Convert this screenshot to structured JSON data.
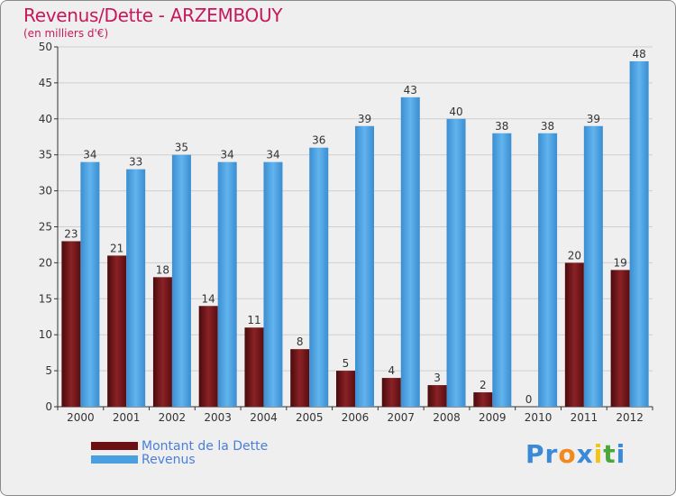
{
  "title": "Revenus/Dette - ARZEMBOUY",
  "subtitle": "(en milliers d'€)",
  "colors": {
    "title": "#c8185a",
    "dette": "#6b0f12",
    "revenus": "#4a9fe0",
    "legend_text": "#4a7fd8"
  },
  "chart_data": {
    "type": "bar",
    "categories": [
      "2000",
      "2001",
      "2002",
      "2003",
      "2004",
      "2005",
      "2006",
      "2007",
      "2008",
      "2009",
      "2010",
      "2011",
      "2012"
    ],
    "series": [
      {
        "name": "Montant de la Dette",
        "values": [
          23,
          21,
          18,
          14,
          11,
          8,
          5,
          4,
          3,
          2,
          0,
          20,
          19
        ]
      },
      {
        "name": "Revenus",
        "values": [
          34,
          33,
          35,
          34,
          34,
          36,
          39,
          43,
          40,
          38,
          38,
          39,
          48
        ]
      }
    ],
    "ylim": [
      0,
      50
    ],
    "yticks": [
      0,
      5,
      10,
      15,
      20,
      25,
      30,
      35,
      40,
      45,
      50
    ],
    "grid": true,
    "legend_position": "bottom-left"
  },
  "legend": [
    {
      "label": "Montant de la Dette",
      "color": "#6b0f12"
    },
    {
      "label": "Revenus",
      "color": "#4a9fe0"
    }
  ],
  "logo": {
    "text": "Proxiti",
    "letters": [
      "P",
      "r",
      "o",
      "x",
      "i",
      "t",
      "i"
    ],
    "colors": [
      "#3a8ad8",
      "#3a8ad8",
      "#f08a1c",
      "#3a8ad8",
      "#f2c31a",
      "#4aa83a",
      "#3a8ad8"
    ]
  }
}
